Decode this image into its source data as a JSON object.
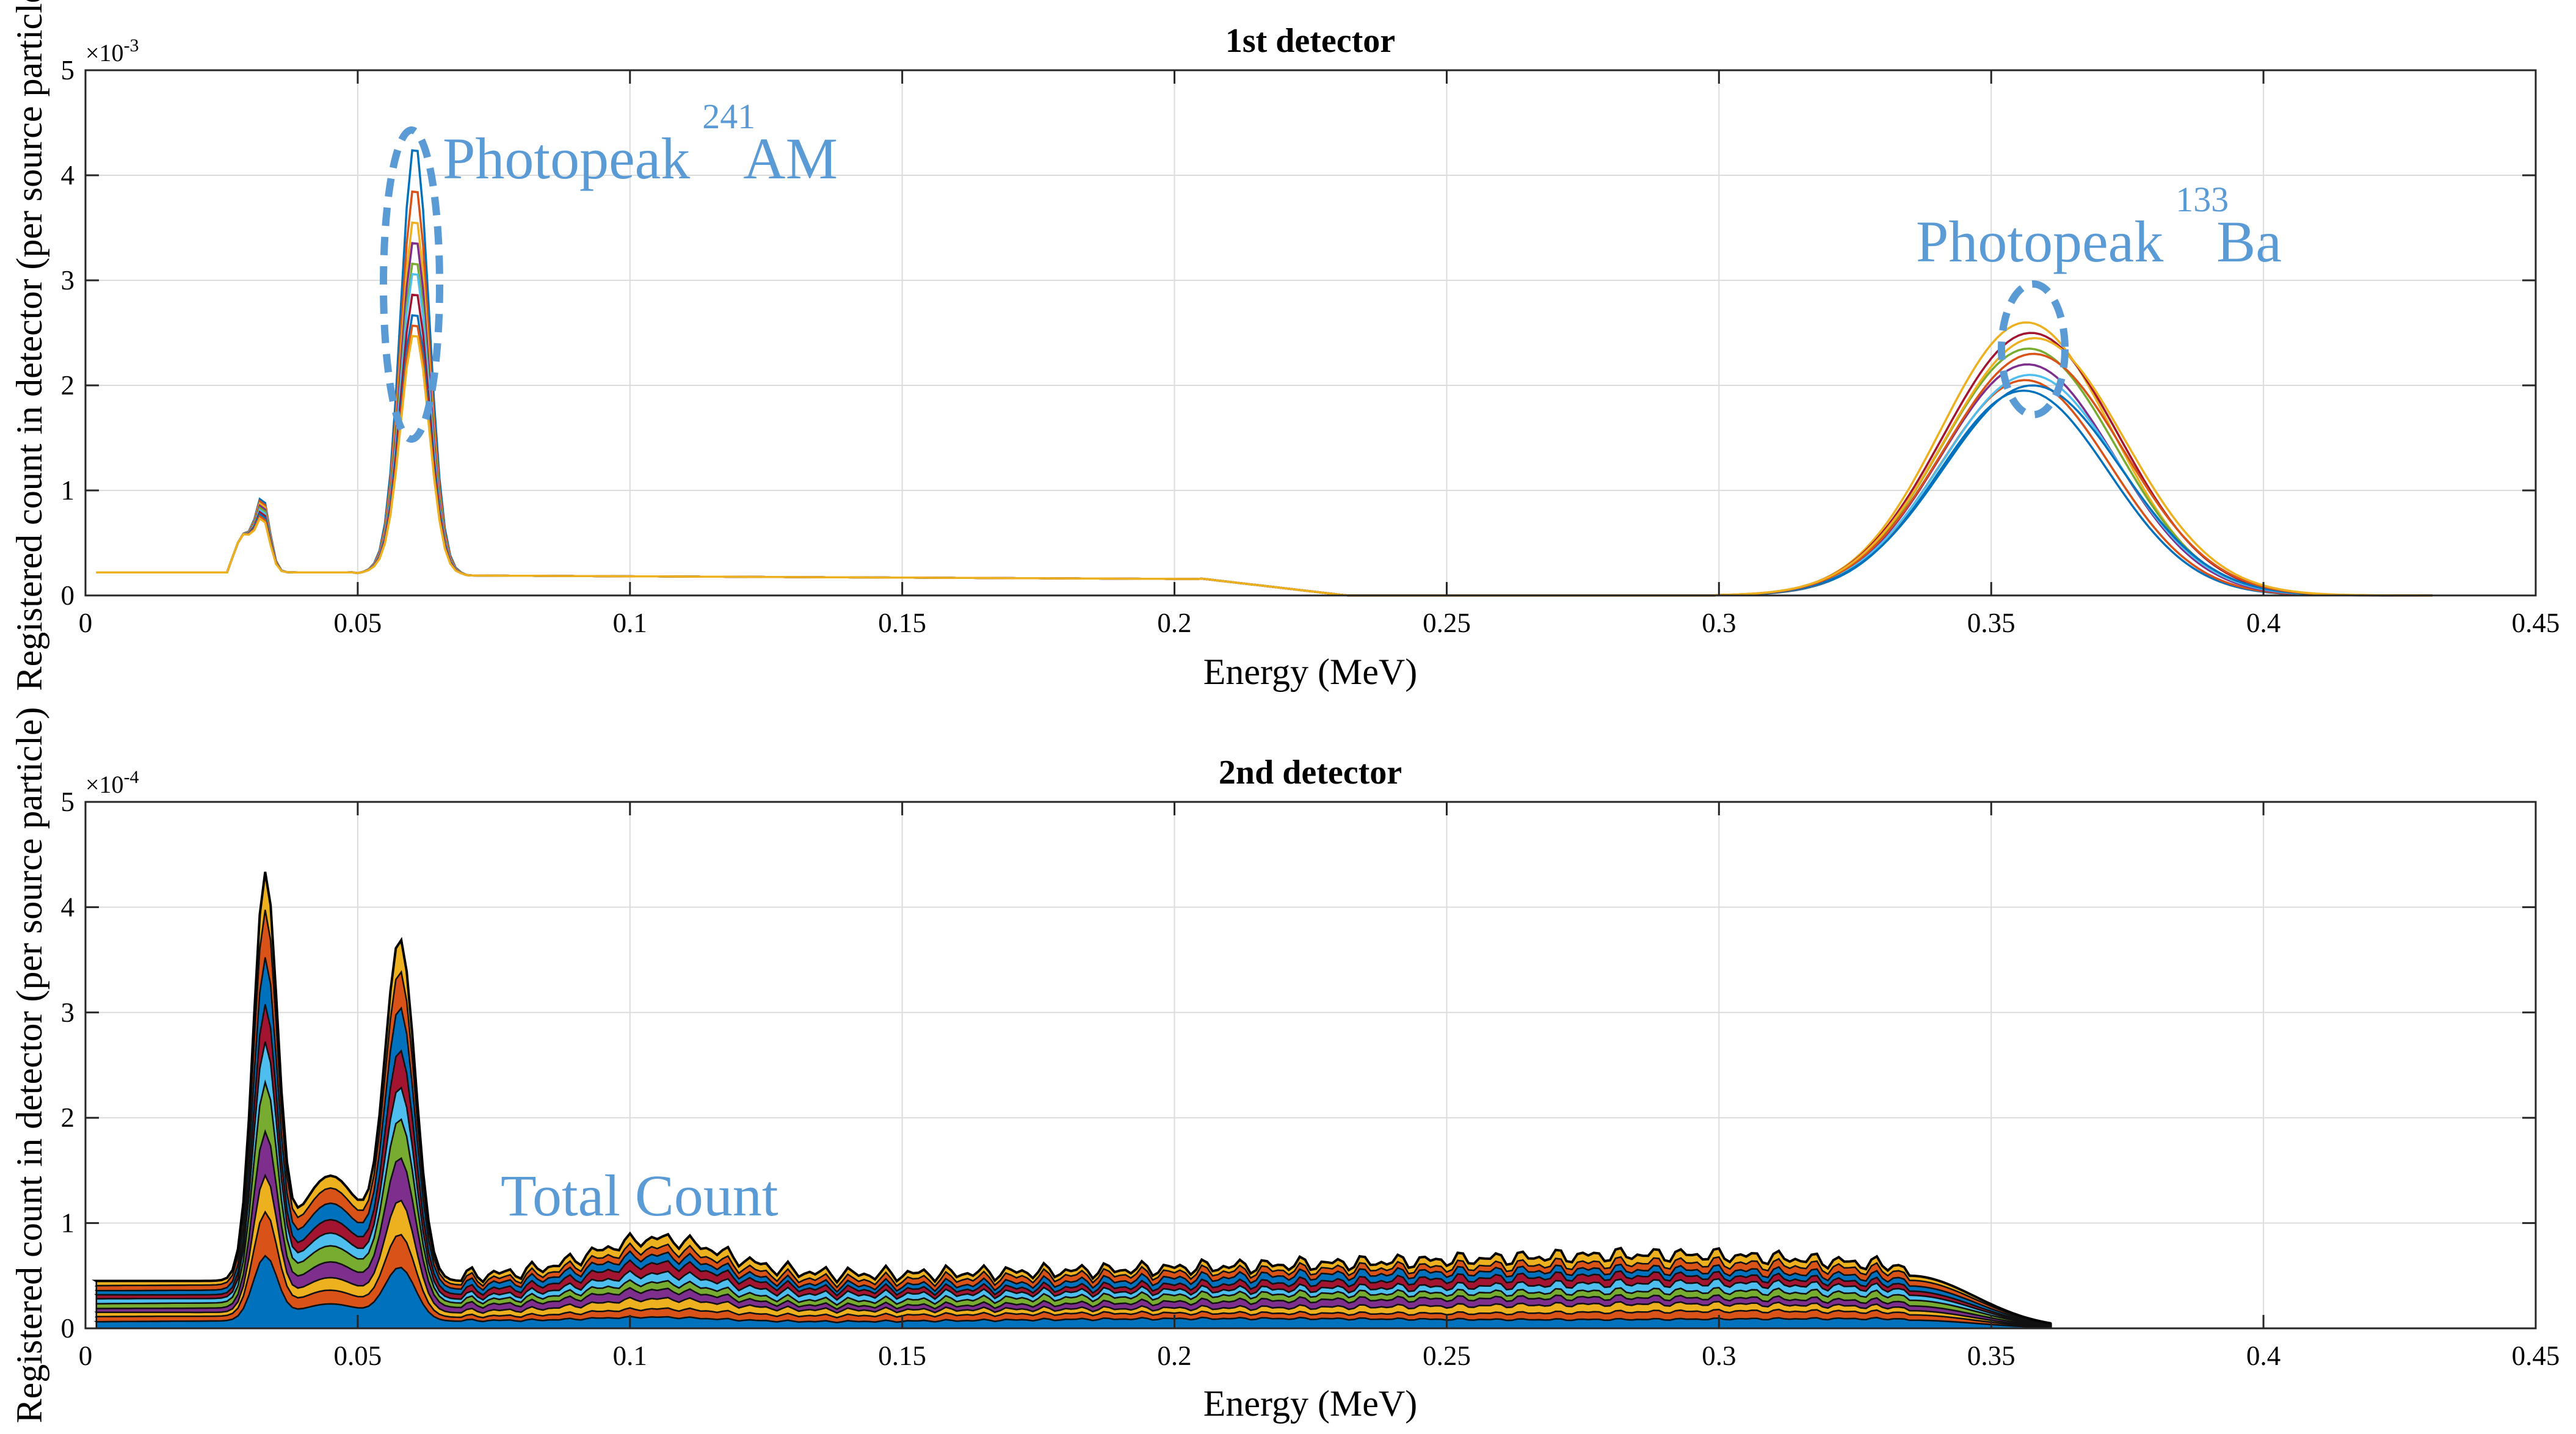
{
  "chart_data": [
    {
      "type": "line",
      "title": "1st detector",
      "xlabel": "Energy (MeV)",
      "ylabel": "Registered count in detector (per source particle)",
      "xlim": [
        0,
        0.45
      ],
      "ylim": [
        0,
        5
      ],
      "y_exponent_label": "×10",
      "y_exponent_value": "-3",
      "x_ticks": [
        "0",
        "0.05",
        "0.1",
        "0.15",
        "0.2",
        "0.25",
        "0.3",
        "0.35",
        "0.4",
        "0.45"
      ],
      "x_tick_values": [
        0,
        0.05,
        0.1,
        0.15,
        0.2,
        0.25,
        0.3,
        0.35,
        0.4,
        0.45
      ],
      "y_ticks": [
        "0",
        "1",
        "2",
        "3",
        "4",
        "5"
      ],
      "y_tick_values": [
        0,
        1,
        2,
        3,
        4,
        5
      ],
      "grid": true,
      "series_colors": [
        "#0072bd",
        "#d95319",
        "#edb120",
        "#7e2f8e",
        "#77ac30",
        "#4dbeee",
        "#a2142f",
        "#0072bd",
        "#d95319",
        "#edb120"
      ],
      "series": [
        {
          "peak241": 4.1,
          "peak133": 1.95
        },
        {
          "peak241": 3.7,
          "peak133": 2.05
        },
        {
          "peak241": 3.4,
          "peak133": 2.6
        },
        {
          "peak241": 3.2,
          "peak133": 2.2
        },
        {
          "peak241": 3.0,
          "peak133": 2.35
        },
        {
          "peak241": 2.9,
          "peak133": 2.1
        },
        {
          "peak241": 2.7,
          "peak133": 2.5
        },
        {
          "peak241": 2.5,
          "peak133": 2.0
        },
        {
          "peak241": 2.4,
          "peak133": 2.3
        },
        {
          "peak241": 2.3,
          "peak133": 2.45
        }
      ],
      "annotations": [
        {
          "text": "Photopeak",
          "isotope_mass": "241",
          "isotope": "AM",
          "x": 0.06
        },
        {
          "text": "Photopeak",
          "isotope_mass": "133",
          "isotope": "Ba",
          "x": 0.358
        }
      ]
    },
    {
      "type": "area",
      "stacked": true,
      "title": "2nd detector",
      "xlabel": "Energy (MeV)",
      "ylabel": "Registered count in detector (per source particle)",
      "xlim": [
        0,
        0.45
      ],
      "ylim": [
        0,
        5
      ],
      "y_exponent_label": "×10",
      "y_exponent_value": "-4",
      "x_ticks": [
        "0",
        "0.05",
        "0.1",
        "0.15",
        "0.2",
        "0.25",
        "0.3",
        "0.35",
        "0.4",
        "0.45"
      ],
      "x_tick_values": [
        0,
        0.05,
        0.1,
        0.15,
        0.2,
        0.25,
        0.3,
        0.35,
        0.4,
        0.45
      ],
      "y_ticks": [
        "0",
        "1",
        "2",
        "3",
        "4",
        "5"
      ],
      "y_tick_values": [
        0,
        1,
        2,
        3,
        4,
        5
      ],
      "grid": true,
      "layer_colors": [
        "#0072bd",
        "#d95319",
        "#edb120",
        "#7e2f8e",
        "#77ac30",
        "#4dbeee",
        "#a2142f",
        "#0072bd",
        "#d95319",
        "#edb120"
      ],
      "total_peak_values": [
        4.2,
        3.6
      ],
      "annotation": {
        "text": "Total Count",
        "x": 0.077,
        "y": 1.1
      }
    }
  ]
}
